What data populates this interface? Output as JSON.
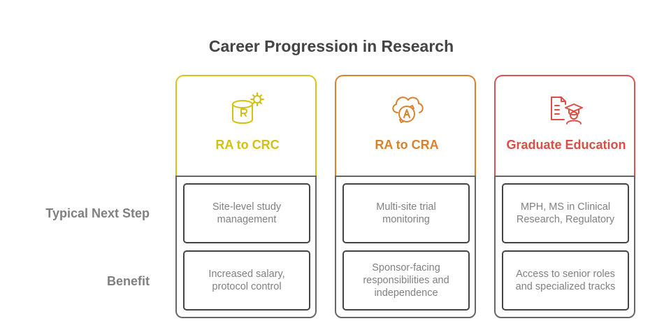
{
  "title": "Career Progression in Research",
  "row_labels": [
    "Typical Next Step",
    "Benefit"
  ],
  "columns": [
    {
      "title": "RA to CRC",
      "icon": "database-gear-icon",
      "color": "#d9c21a",
      "typical_next_step": "Site-level study management",
      "benefit": "Increased salary, protocol control"
    },
    {
      "title": "RA to CRA",
      "icon": "cloud-sync-icon",
      "color": "#d9822b",
      "typical_next_step": "Multi-site trial monitoring",
      "benefit": "Sponsor-facing responsibilities and independence"
    },
    {
      "title": "Graduate Education",
      "icon": "graduate-document-icon",
      "color": "#e0504e",
      "typical_next_step": "MPH, MS in Clinical Research, Regulatory",
      "benefit": "Access to senior roles and specialized tracks"
    }
  ]
}
